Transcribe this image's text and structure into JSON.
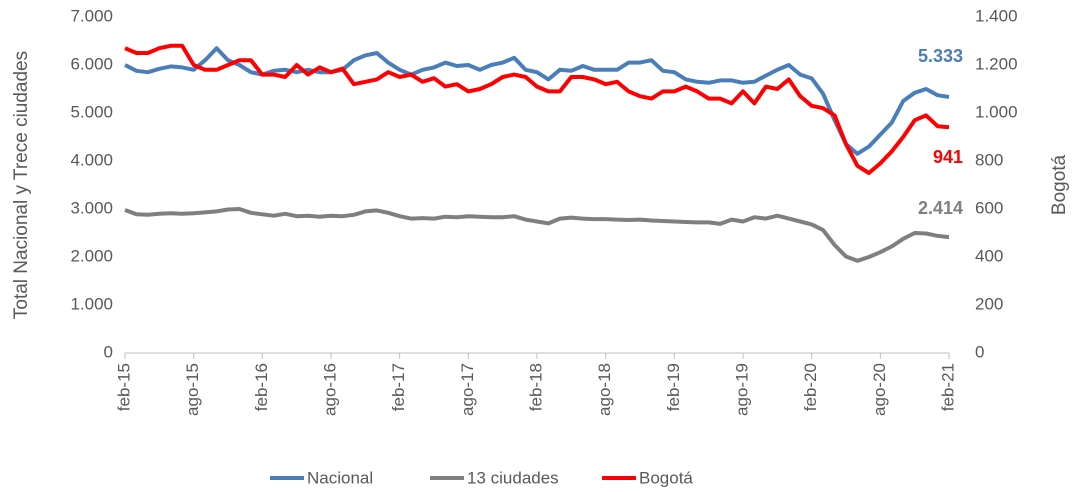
{
  "chart_data": {
    "type": "line",
    "y_label": "Total Nacional y Trece ciudades",
    "y2_label": "Bogotá",
    "categories": [
      "feb-15",
      null,
      null,
      null,
      null,
      null,
      "ago-15",
      null,
      null,
      null,
      null,
      null,
      "feb-16",
      null,
      null,
      null,
      null,
      null,
      "ago-16",
      null,
      null,
      null,
      null,
      null,
      "feb-17",
      null,
      null,
      null,
      null,
      null,
      "ago-17",
      null,
      null,
      null,
      null,
      null,
      "feb-18",
      null,
      null,
      null,
      null,
      null,
      "ago-18",
      null,
      null,
      null,
      null,
      null,
      "feb-19",
      null,
      null,
      null,
      null,
      null,
      "ago-19",
      null,
      null,
      null,
      null,
      null,
      "feb-20",
      null,
      null,
      null,
      null,
      null,
      "ago-20",
      null,
      null,
      null,
      null,
      null,
      "feb-21"
    ],
    "series": [
      {
        "name": "Nacional",
        "color": "#4a7ebb",
        "last_label": "5.333",
        "values": [
          6000,
          5880,
          5850,
          5920,
          5970,
          5950,
          5900,
          6100,
          6350,
          6100,
          6000,
          5850,
          5800,
          5880,
          5900,
          5850,
          5900,
          5850,
          5850,
          5900,
          6100,
          6200,
          6250,
          6050,
          5900,
          5800,
          5900,
          5950,
          6050,
          5980,
          6000,
          5900,
          6000,
          6050,
          6150,
          5900,
          5850,
          5700,
          5900,
          5880,
          5980,
          5900,
          5900,
          5900,
          6050,
          6050,
          6100,
          5880,
          5850,
          5700,
          5650,
          5630,
          5680,
          5680,
          5630,
          5650,
          5780,
          5900,
          6000,
          5800,
          5720,
          5400,
          4850,
          4350,
          4150,
          4300,
          4550,
          4800,
          5250,
          5420,
          5500,
          5370,
          5333
        ]
      },
      {
        "name": "13 ciudades",
        "color": "#7f7f7f",
        "last_label": "2.414",
        "values": [
          2980,
          2890,
          2880,
          2900,
          2910,
          2900,
          2910,
          2930,
          2950,
          2990,
          3000,
          2920,
          2890,
          2860,
          2900,
          2850,
          2860,
          2840,
          2860,
          2850,
          2880,
          2950,
          2970,
          2920,
          2850,
          2800,
          2810,
          2800,
          2840,
          2830,
          2850,
          2840,
          2830,
          2830,
          2850,
          2780,
          2740,
          2700,
          2800,
          2820,
          2800,
          2790,
          2790,
          2780,
          2770,
          2780,
          2760,
          2750,
          2740,
          2730,
          2720,
          2720,
          2690,
          2780,
          2740,
          2830,
          2800,
          2860,
          2800,
          2740,
          2680,
          2560,
          2250,
          2010,
          1920,
          2000,
          2100,
          2220,
          2380,
          2500,
          2490,
          2440,
          2414
        ]
      },
      {
        "name": "Bogotá",
        "color": "#ff0000",
        "axis": "y2",
        "last_label": "941",
        "values": [
          1270,
          1250,
          1250,
          1270,
          1280,
          1280,
          1200,
          1180,
          1180,
          1200,
          1220,
          1220,
          1160,
          1160,
          1150,
          1200,
          1160,
          1190,
          1170,
          1185,
          1120,
          1130,
          1140,
          1170,
          1150,
          1160,
          1130,
          1145,
          1110,
          1120,
          1090,
          1100,
          1120,
          1150,
          1160,
          1150,
          1110,
          1090,
          1090,
          1150,
          1150,
          1140,
          1120,
          1130,
          1090,
          1070,
          1060,
          1090,
          1090,
          1110,
          1090,
          1060,
          1060,
          1040,
          1090,
          1040,
          1110,
          1100,
          1140,
          1070,
          1030,
          1020,
          990,
          870,
          780,
          750,
          790,
          840,
          900,
          970,
          990,
          945,
          941
        ]
      }
    ],
    "ylim": [
      0,
      7000
    ],
    "yticks": [
      0,
      {
        "value": 1000,
        "label": "1.000"
      },
      {
        "value": 2000,
        "label": "2.000"
      },
      {
        "value": 3000,
        "label": "3.000"
      },
      {
        "value": 4000,
        "label": "4.000"
      },
      {
        "value": 5000,
        "label": "5.000"
      },
      {
        "value": 6000,
        "label": "6.000"
      },
      {
        "value": 7000,
        "label": "7.000"
      }
    ],
    "y2lim": [
      0,
      1400
    ],
    "y2ticks": [
      0,
      200,
      400,
      600,
      800,
      {
        "value": 1000,
        "label": "1.000"
      },
      {
        "value": 1200,
        "label": "1.200"
      },
      {
        "value": 1400,
        "label": "1.400"
      }
    ],
    "legend": "bottom",
    "grid": false
  }
}
